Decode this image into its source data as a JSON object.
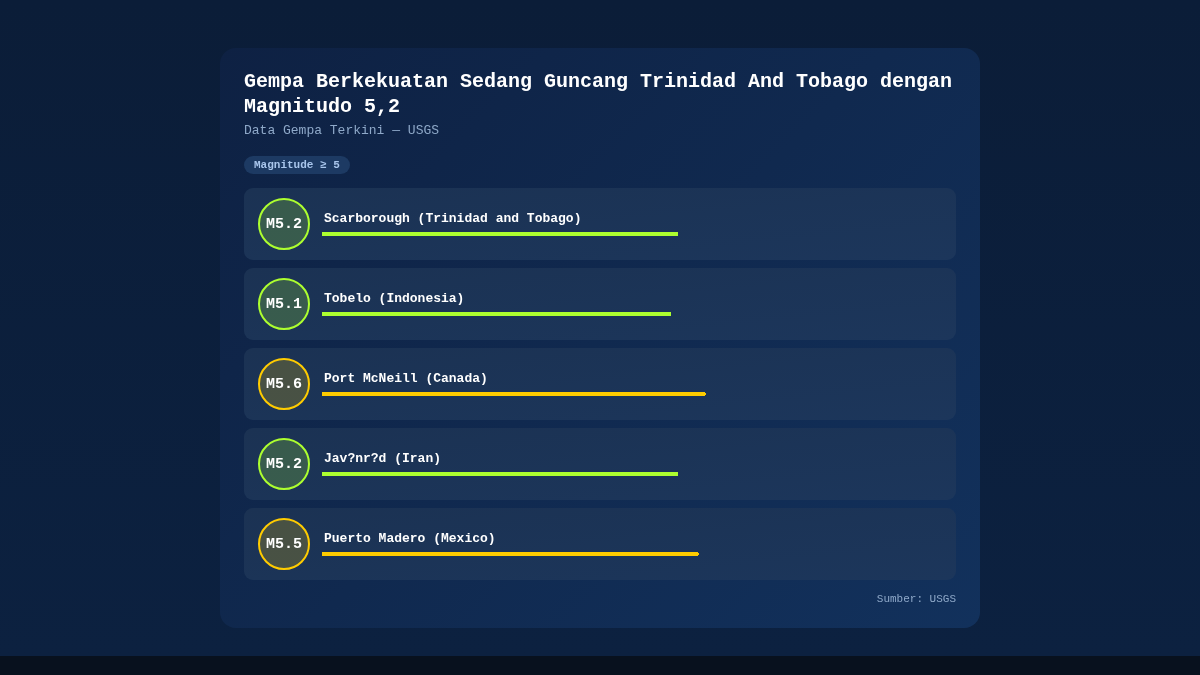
{
  "chart_data": {
    "type": "bar",
    "title": "Gempa Berkekuatan Sedang Guncang Trinidad And Tobago dengan Magnitudo 5,2",
    "subtitle": "Data Gempa Terkini — USGS",
    "annotations": [
      "Magnitude ≥ 5",
      "Sumber: USGS"
    ],
    "orientation": "horizontal",
    "categories": [
      "Scarborough (Trinidad and Tobago)",
      "Tobelo (Indonesia)",
      "Port McNeill (Canada)",
      "Jav?nr?d (Iran)",
      "Puerto Madero (Mexico)"
    ],
    "values": [
      5.2,
      5.1,
      5.6,
      5.2,
      5.5
    ],
    "colors": [
      "#adff2f",
      "#adff2f",
      "#ffcc00",
      "#adff2f",
      "#ffcc00"
    ],
    "value_labels": [
      "M5.2",
      "M5.1",
      "M5.6",
      "M5.2",
      "M5.5"
    ],
    "tick_labels": "y"
  }
}
